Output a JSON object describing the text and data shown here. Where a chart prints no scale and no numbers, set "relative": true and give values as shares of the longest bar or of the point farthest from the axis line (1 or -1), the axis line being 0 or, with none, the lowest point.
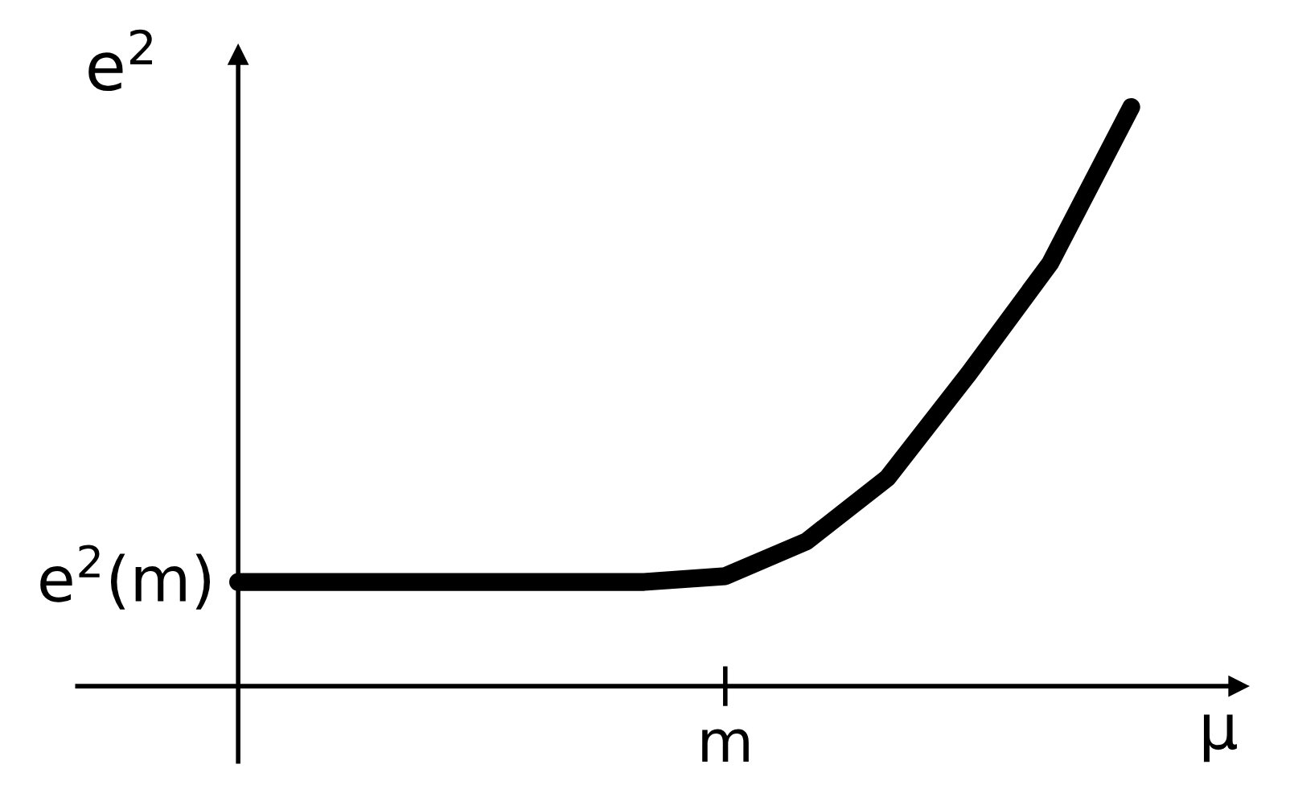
{
  "chart_data": {
    "type": "line",
    "relative": true,
    "xlabel": "μ",
    "ylabel": "e$^{2}$",
    "categories": [
      null,
      null,
      null,
      null,
      null,
      null,
      null,
      null,
      null,
      null,
      null,
      null
    ],
    "series": [
      {
        "color": "#000000",
        "values": [
          0.18,
          0.18,
          0.18,
          0.18,
          0.18,
          0.18,
          0.19,
          0.25,
          0.36,
          0.54,
          0.73,
          1.0
        ]
      }
    ],
    "annotations": [
      "e$^{2}$(m)",
      "m"
    ],
    "line_style": "solid"
  }
}
